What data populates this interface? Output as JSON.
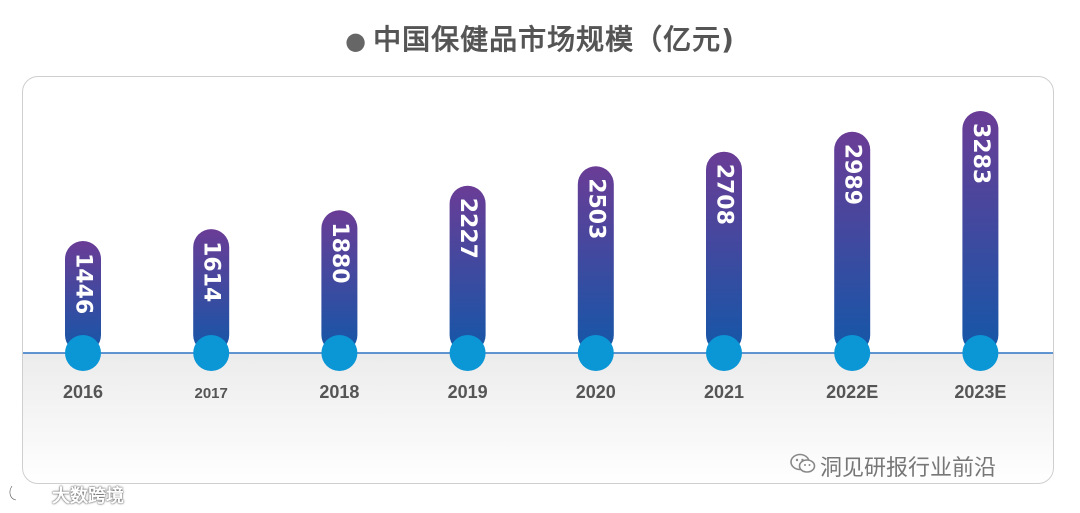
{
  "title": "中国保健品市场规模（亿元)",
  "title_bullet": "●",
  "chart_data": {
    "type": "bar",
    "title": "中国保健品市场规模（亿元)",
    "categories": [
      "2016",
      "2017",
      "2018",
      "2019",
      "2020",
      "2021",
      "2022E",
      "2023E"
    ],
    "values": [
      1446,
      1614,
      1880,
      2227,
      2503,
      2708,
      2989,
      3283
    ],
    "ylim": [
      0,
      3400
    ],
    "grid": false,
    "colors": {
      "bar_top": "#6a3c96",
      "bar_bottom": "#1457a8",
      "base_circle": "#0b96d6",
      "axis_line": "#2b73c4"
    }
  },
  "watermark_right": "洞见研报行业前沿",
  "watermark_right_icon": "wechat-icon",
  "watermark_left": "大数跨境",
  "watermark_left_icon": "logo-icon"
}
